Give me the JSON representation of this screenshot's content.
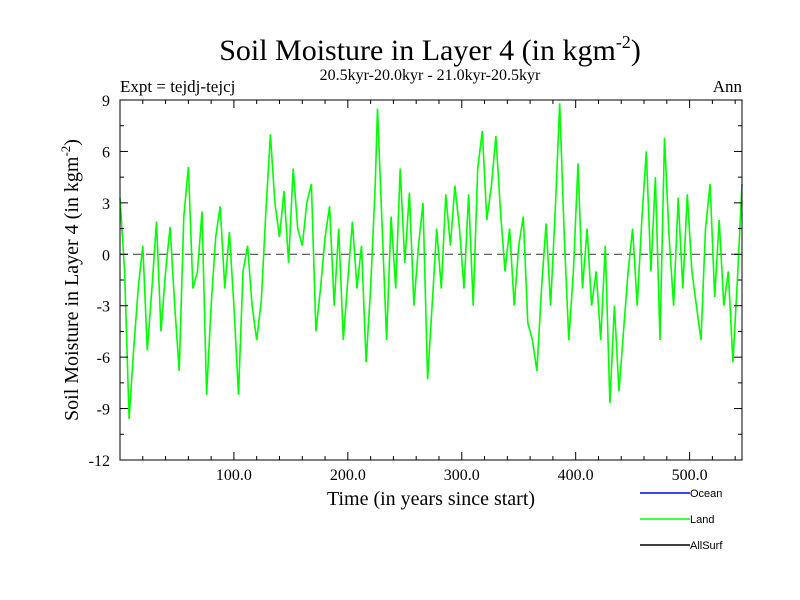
{
  "chart_data": {
    "type": "line",
    "title": "Soil Moisture in Layer 4 (in kgm",
    "title_sup": "-2",
    "title_end": ")",
    "subtitle": "20.5kyr-20.0kyr - 21.0kyr-20.5kyr",
    "left_label": "Expt = tejdj-tejcj",
    "right_label": "Ann",
    "xlabel": "Time (in years since start)",
    "ylabel": "Soil Moisture in Layer 4 (in kgm",
    "ylabel_sup": "-2",
    "ylabel_end": ")",
    "xlim": [
      0,
      546
    ],
    "ylim": [
      -12,
      9
    ],
    "xticks": [
      100,
      200,
      300,
      400,
      500
    ],
    "xtick_labels": [
      "100.0",
      "200.0",
      "300.0",
      "400.0",
      "500.0"
    ],
    "yticks": [
      -12,
      -9,
      -6,
      -3,
      0,
      3,
      6,
      9
    ],
    "ytick_labels": [
      "-12",
      "-9",
      "-6",
      "-3",
      "0",
      "3",
      "6",
      "9"
    ],
    "reference_line": 0,
    "legend_position": "bottom-right",
    "series": [
      {
        "name": "Ocean",
        "color": "#0000ff",
        "x": [],
        "y": []
      },
      {
        "name": "Land",
        "color": "#00ff00",
        "x": [
          0,
          4,
          8,
          12,
          16,
          20,
          24,
          28,
          32,
          36,
          40,
          44,
          48,
          52,
          56,
          60,
          64,
          68,
          72,
          76,
          80,
          84,
          88,
          92,
          96,
          100,
          104,
          108,
          112,
          116,
          120,
          124,
          128,
          132,
          136,
          140,
          144,
          148,
          152,
          156,
          160,
          164,
          168,
          172,
          176,
          180,
          184,
          188,
          192,
          196,
          200,
          204,
          208,
          212,
          216,
          220,
          224,
          226,
          230,
          234,
          238,
          242,
          246,
          250,
          254,
          258,
          262,
          266,
          270,
          274,
          278,
          282,
          286,
          290,
          294,
          298,
          302,
          306,
          310,
          314,
          318,
          322,
          326,
          330,
          334,
          338,
          342,
          346,
          350,
          354,
          358,
          362,
          366,
          370,
          374,
          378,
          382,
          386,
          390,
          394,
          398,
          402,
          406,
          410,
          414,
          418,
          422,
          426,
          430,
          434,
          438,
          442,
          446,
          450,
          454,
          458,
          462,
          466,
          470,
          474,
          478,
          482,
          486,
          490,
          494,
          498,
          502,
          506,
          510,
          514,
          518,
          522,
          526,
          530,
          534,
          538,
          542,
          546
        ],
        "y": [
          3.3,
          -1,
          -9.6,
          -5.5,
          -2,
          0.5,
          -5.6,
          -2,
          1.9,
          -4.5,
          -1,
          1.6,
          -3,
          -6.8,
          2.2,
          5.1,
          -2,
          -1,
          2.5,
          -8.2,
          -3,
          1.0,
          2.8,
          -2,
          1.3,
          -3,
          -8.2,
          -1,
          0.5,
          -3,
          -5,
          -2.7,
          2.4,
          7.0,
          3,
          1,
          3.7,
          -0.5,
          5.0,
          1.5,
          0.5,
          3,
          4.1,
          -4.5,
          -2,
          1.0,
          2.8,
          -3,
          1.5,
          -5,
          -1.5,
          1.9,
          -2,
          0.5,
          -6.3,
          -2,
          4,
          8.5,
          1.8,
          -5,
          2.2,
          -2,
          5.0,
          -0.5,
          3.6,
          -3,
          0.5,
          3.0,
          -7.3,
          -3,
          1.5,
          -2,
          3.5,
          0.5,
          4.0,
          1.5,
          -2,
          3.5,
          -3,
          5,
          7.2,
          2,
          4,
          6.9,
          2.5,
          -1,
          1.5,
          -3,
          0.5,
          2.2,
          -4,
          -5,
          -6.8,
          -2,
          1.8,
          -3,
          2.5,
          8.8,
          1,
          -5,
          -1,
          5.3,
          -2,
          1.5,
          -3,
          -1,
          -5,
          0.5,
          -8.7,
          -3,
          -8.0,
          -4.5,
          -1,
          1.5,
          -3,
          2,
          6.0,
          -1,
          4.5,
          -5,
          6.8,
          1,
          -3,
          3.3,
          -2,
          3.5,
          -1,
          -3,
          -5,
          1.5,
          4.1,
          -2.5,
          2,
          -3,
          -1,
          -6.3,
          -1.5,
          4.1
        ]
      },
      {
        "name": "AllSurf",
        "color": "#000000",
        "x": [],
        "y": []
      }
    ]
  }
}
